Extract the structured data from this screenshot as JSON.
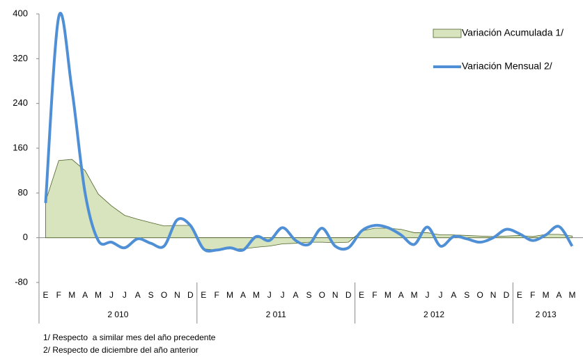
{
  "chart_data": {
    "type": "line",
    "groups": [
      {
        "label": "2 010",
        "categories": [
          "E",
          "F",
          "M",
          "A",
          "M",
          "J",
          "J",
          "A",
          "S",
          "O",
          "N",
          "D"
        ]
      },
      {
        "label": "2 011",
        "categories": [
          "E",
          "F",
          "M",
          "A",
          "M",
          "J",
          "J",
          "A",
          "S",
          "O",
          "N",
          "D"
        ]
      },
      {
        "label": "2 012",
        "categories": [
          "E",
          "F",
          "M",
          "A",
          "M",
          "J",
          "J",
          "A",
          "S",
          "O",
          "N",
          "D"
        ]
      },
      {
        "label": "2 013",
        "categories": [
          "E",
          "F",
          "M",
          "A",
          "M"
        ]
      }
    ],
    "series": [
      {
        "name": "Variación Acumulada 1/",
        "kind": "area",
        "color": "#d7e4bd",
        "values": [
          65,
          138,
          140,
          120,
          78,
          57,
          40,
          33,
          27,
          21,
          22,
          22,
          -20,
          -22,
          -20,
          -20,
          -17,
          -15,
          -11,
          -10,
          -8,
          -8,
          -9,
          -8,
          12,
          17,
          17,
          15,
          9,
          9,
          5,
          5,
          4,
          3,
          2,
          3,
          4,
          2,
          6,
          6,
          3
        ]
      },
      {
        "name": "Variación Mensual 2/",
        "kind": "line",
        "color": "#4f8fd6",
        "values": [
          62,
          395,
          265,
          80,
          -5,
          -8,
          -18,
          -2,
          -10,
          -15,
          32,
          22,
          -20,
          -22,
          -18,
          -22,
          2,
          -5,
          18,
          -5,
          -12,
          17,
          -15,
          -18,
          12,
          22,
          18,
          5,
          -12,
          19,
          -15,
          2,
          -2,
          -8,
          0,
          15,
          7,
          -5,
          5,
          20,
          -15
        ]
      }
    ],
    "ylim": [
      -80,
      400
    ],
    "yticks": [
      400,
      320,
      240,
      160,
      80,
      0,
      -80
    ],
    "notes": [
      "1/ Respecto  a similar mes del año precedente",
      "2/ Respecto de diciembre del año anterior"
    ]
  }
}
